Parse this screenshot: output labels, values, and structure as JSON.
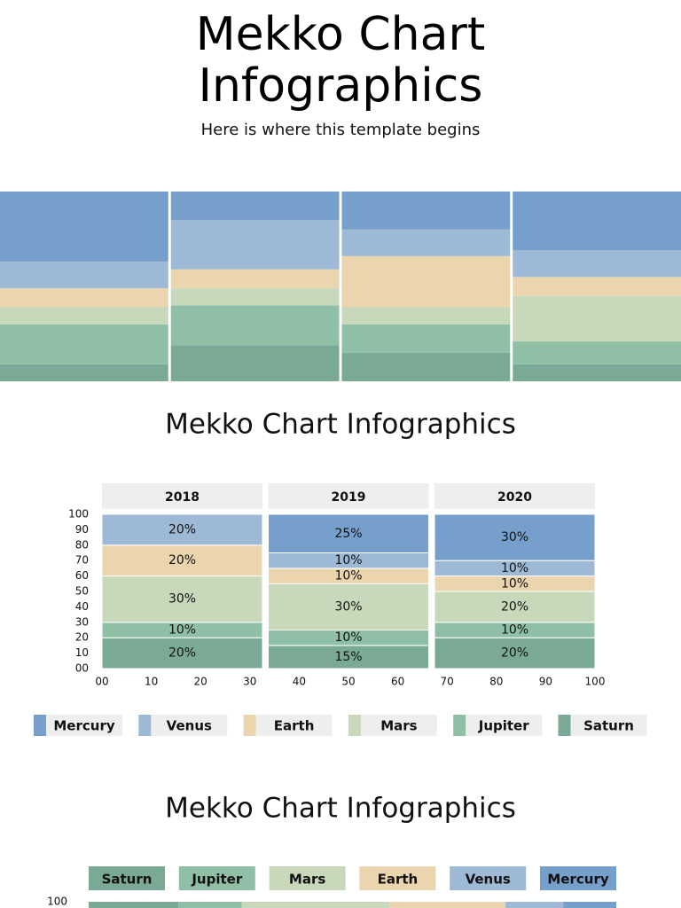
{
  "header": {
    "title": "Mekko Chart Infographics",
    "subtitle": "Here is where this template begins"
  },
  "chart_data": [
    {
      "type": "mekko",
      "categories": [
        null,
        null,
        null,
        null
      ],
      "ylim": [
        0,
        100
      ],
      "series": [
        {
          "name": "Mercury",
          "color": "#769fcb",
          "values": [
            37,
            15,
            20,
            31
          ]
        },
        {
          "name": "Venus",
          "color": "#9db9d5",
          "values": [
            14,
            26,
            14,
            14
          ]
        },
        {
          "name": "Earth",
          "color": "#ead5ae",
          "values": [
            10,
            10,
            27,
            10
          ]
        },
        {
          "name": "Mars",
          "color": "#c8d8bb",
          "values": [
            9,
            9,
            9,
            24
          ]
        },
        {
          "name": "Jupiter",
          "color": "#8fc0a6",
          "values": [
            21,
            21,
            15,
            12
          ]
        },
        {
          "name": "Saturn",
          "color": "#7aaa96",
          "values": [
            9,
            19,
            15,
            9
          ]
        }
      ]
    },
    {
      "type": "mekko",
      "title": "Mekko Chart Infographics",
      "categories": [
        "2018",
        "2019",
        "2020"
      ],
      "xlim": [
        0,
        100
      ],
      "ylim": [
        0,
        100
      ],
      "xticks": [
        {
          "value": 0,
          "label": "00"
        },
        10,
        20,
        30,
        40,
        50,
        60,
        70,
        80,
        90,
        100
      ],
      "yticks": [
        {
          "value": 0,
          "label": "00"
        },
        10,
        20,
        30,
        40,
        50,
        60,
        70,
        80,
        90,
        100
      ],
      "series": [
        {
          "name": "Mercury",
          "color": "#769fcb",
          "values": [
            0,
            25,
            30
          ],
          "value_labels": [
            null,
            "25%",
            "30%"
          ]
        },
        {
          "name": "Venus",
          "color": "#9db9d5",
          "values": [
            20,
            10,
            10
          ],
          "value_labels": [
            "20%",
            "10%",
            "10%"
          ]
        },
        {
          "name": "Earth",
          "color": "#ead5ae",
          "values": [
            20,
            10,
            10
          ],
          "value_labels": [
            "20%",
            "10%",
            "10%"
          ]
        },
        {
          "name": "Mars",
          "color": "#c8d8bb",
          "values": [
            30,
            30,
            20
          ],
          "value_labels": [
            "30%",
            "30%",
            "20%"
          ]
        },
        {
          "name": "Jupiter",
          "color": "#8fc0a6",
          "values": [
            10,
            10,
            10
          ],
          "value_labels": [
            "10%",
            "10%",
            "10%"
          ]
        },
        {
          "name": "Saturn",
          "color": "#7aaa96",
          "values": [
            20,
            15,
            20
          ],
          "value_labels": [
            "20%",
            "15%",
            "20%"
          ]
        }
      ]
    },
    {
      "type": "hmekko",
      "title": "Mekko Chart Infographics",
      "categories": [
        null
      ],
      "xlim": [
        0,
        100
      ],
      "yticks": [
        100
      ],
      "series": [
        {
          "name": "Saturn",
          "color": "#7aaa96",
          "values": [
            17
          ]
        },
        {
          "name": "Jupiter",
          "color": "#8fc0a6",
          "values": [
            12
          ]
        },
        {
          "name": "Mars",
          "color": "#c8d8bb",
          "values": [
            28
          ]
        },
        {
          "name": "Earth",
          "color": "#ead5ae",
          "values": [
            22
          ]
        },
        {
          "name": "Venus",
          "color": "#9db9d5",
          "values": [
            11
          ]
        },
        {
          "name": "Mercury",
          "color": "#769fcb",
          "values": [
            10
          ]
        }
      ]
    }
  ]
}
